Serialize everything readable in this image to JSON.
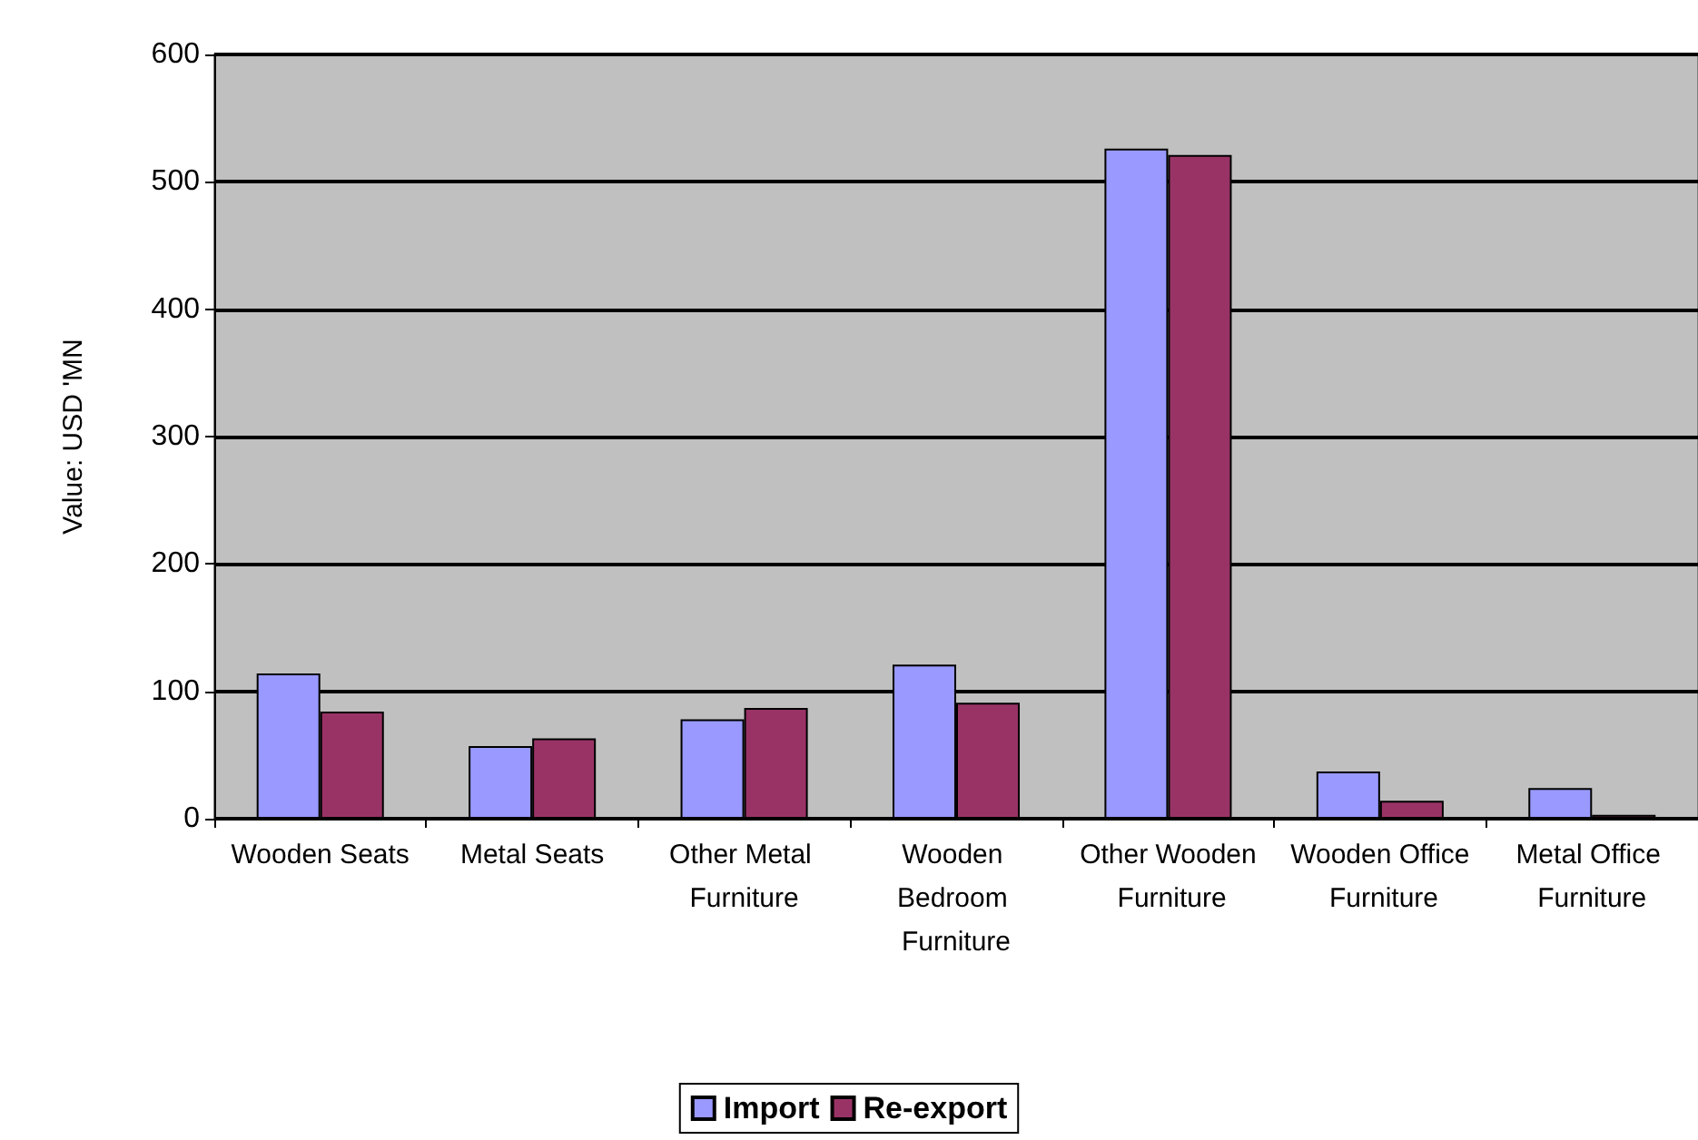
{
  "chart_data": {
    "type": "bar",
    "ylabel": "Value: USD 'MN",
    "categories": [
      "Wooden Seats",
      "Metal Seats",
      "Other Metal Furniture",
      "Wooden Bedroom Furniture",
      "Other Wooden Furniture",
      "Wooden Office Furniture",
      "Metal Office Furniture"
    ],
    "series": [
      {
        "name": "Import",
        "color": "#9999ff",
        "values": [
          114,
          57,
          78,
          121,
          526,
          37,
          24
        ]
      },
      {
        "name": "Re-export",
        "color": "#993366",
        "values": [
          84,
          63,
          87,
          91,
          521,
          14,
          3
        ]
      }
    ],
    "ylim": [
      0,
      600
    ],
    "yticks": [
      0,
      100,
      200,
      300,
      400,
      500,
      600
    ],
    "grid": "y",
    "legend": "bottom"
  }
}
